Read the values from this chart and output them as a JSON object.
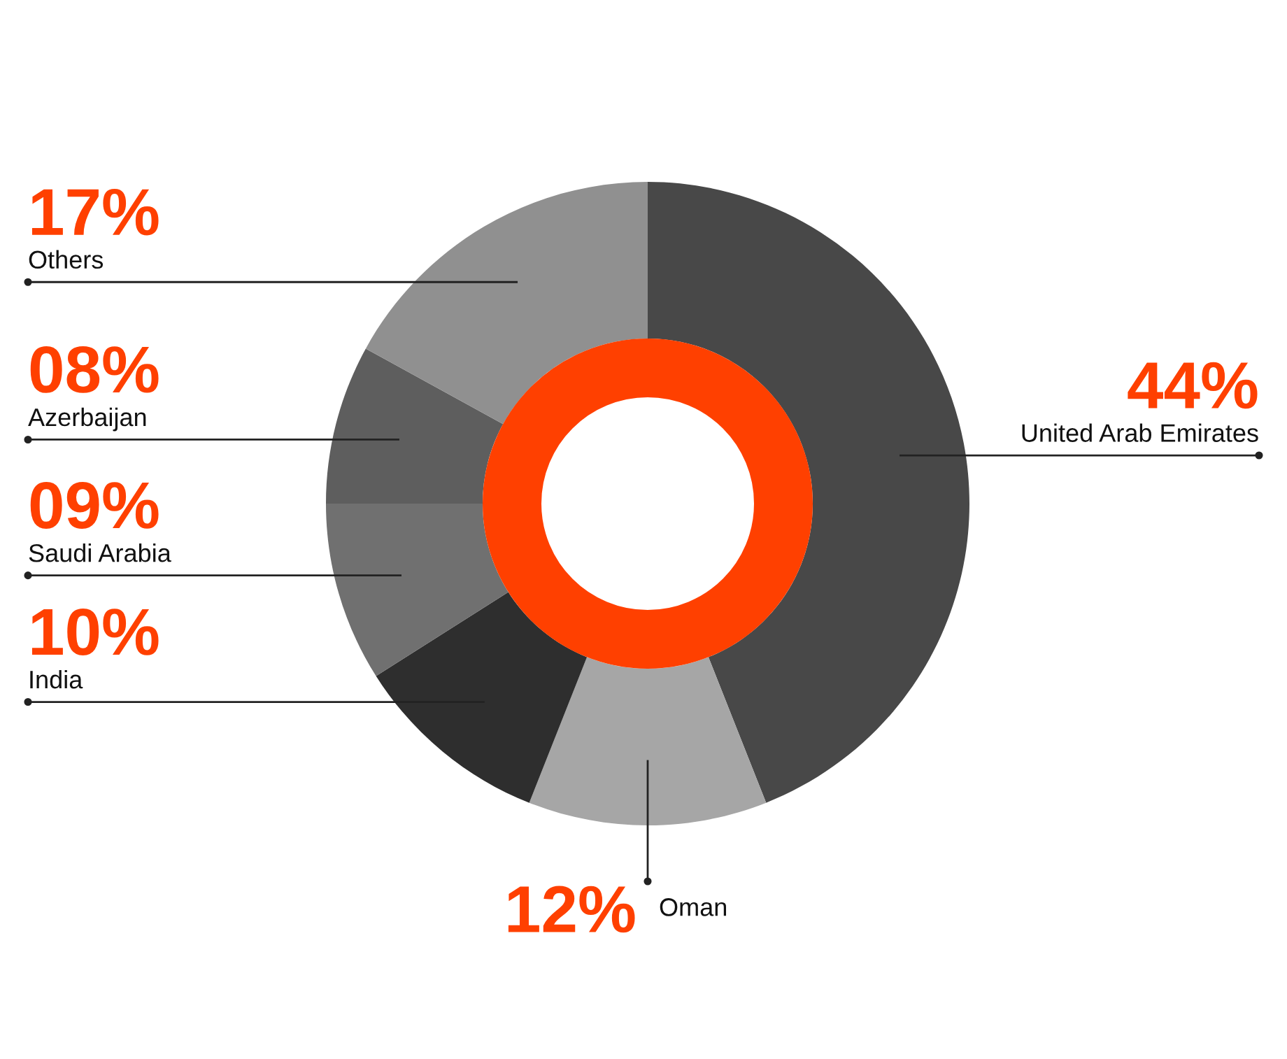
{
  "chart_data": {
    "type": "donut",
    "categories": [
      "United Arab Emirates",
      "Oman",
      "India",
      "Saudi Arabia",
      "Azerbaijan",
      "Others"
    ],
    "values": [
      44,
      12,
      10,
      9,
      8,
      17
    ],
    "value_labels": [
      "44%",
      "12%",
      "10%",
      "09%",
      "08%",
      "17%"
    ],
    "colors": [
      "#484848",
      "#a6a6a6",
      "#2e2e2e",
      "#707070",
      "#5e5e5e",
      "#909090"
    ]
  }
}
